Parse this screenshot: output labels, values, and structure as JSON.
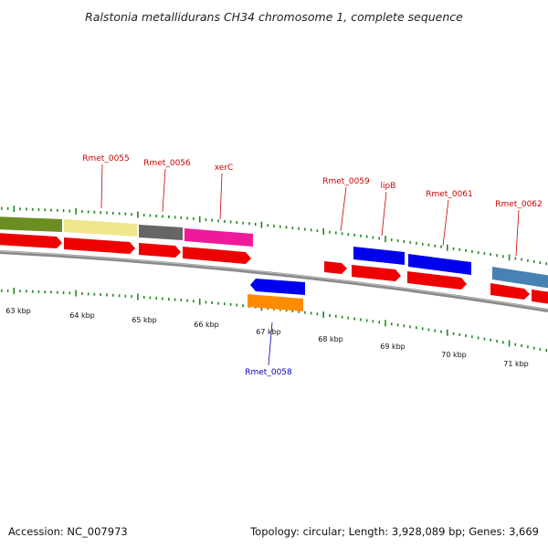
{
  "title": "Ralstonia metallidurans CH34 chromosome 1, complete sequence",
  "footer": {
    "accession": "Accession: NC_007973",
    "summary": "Topology: circular; Length: 3,928,089 bp; Genes: 3,669"
  },
  "colors": {
    "backbone": "#8a8a8a",
    "tick": "#1f8a1f",
    "gene_label_forward": "#cc0000",
    "gene_label_reverse": "#0000bb",
    "cds_red": "#ee0000",
    "olive": "#6b8e23",
    "khaki": "#efe68c",
    "gray": "#666666",
    "magenta": "#ee1a9a",
    "blue": "#0000ee",
    "orange": "#ff8c00",
    "steelblue": "#4682b4"
  },
  "scale_ticks": [
    {
      "label": "63 kbp"
    },
    {
      "label": "64 kbp"
    },
    {
      "label": "65 kbp"
    },
    {
      "label": "66 kbp"
    },
    {
      "label": "67 kbp"
    },
    {
      "label": "68 kbp"
    },
    {
      "label": "69 kbp"
    },
    {
      "label": "70 kbp"
    },
    {
      "label": "71 kbp"
    }
  ],
  "gene_labels": [
    {
      "text": "Rmet_0055",
      "strand": "forward"
    },
    {
      "text": "Rmet_0056",
      "strand": "forward"
    },
    {
      "text": "xerC",
      "strand": "forward"
    },
    {
      "text": "Rmet_0059",
      "strand": "forward"
    },
    {
      "text": "lipB",
      "strand": "forward"
    },
    {
      "text": "Rmet_0061",
      "strand": "forward"
    },
    {
      "text": "Rmet_0062",
      "strand": "forward"
    },
    {
      "text": "Rmet_0058",
      "strand": "reverse"
    }
  ]
}
